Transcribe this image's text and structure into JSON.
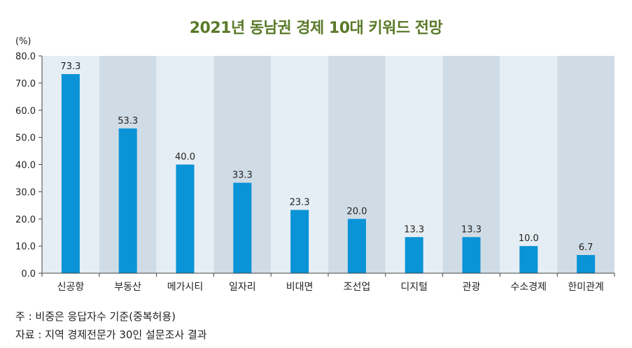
{
  "chart_data": {
    "type": "bar",
    "title": "2021년 동남권 경제 10대 키워드 전망",
    "unit": "(%)",
    "ylabel": "",
    "xlabel": "",
    "ylim": [
      0,
      80
    ],
    "yticks": [
      "0.0",
      "10.0",
      "20.0",
      "30.0",
      "40.0",
      "50.0",
      "60.0",
      "70.0",
      "80.0"
    ],
    "categories": [
      "신공항",
      "부동산",
      "메가시티",
      "일자리",
      "비대면",
      "조선업",
      "디지털",
      "관광",
      "수소경제",
      "한미관계"
    ],
    "values": [
      73.3,
      53.3,
      40.0,
      33.3,
      23.3,
      20.0,
      13.3,
      13.3,
      10.0,
      6.7
    ],
    "value_labels": [
      "73.3",
      "53.3",
      "40.0",
      "33.3",
      "23.3",
      "20.0",
      "13.3",
      "13.3",
      "10.0",
      "6.7"
    ],
    "grid": false,
    "colors": {
      "bar": "#0a93d6",
      "band_light": "#e5eef4",
      "band_dark": "#d0dce5",
      "title": "#5a7a2a"
    }
  },
  "notes": {
    "line1": "주 : 비중은 응답자수 기준(중복허용)",
    "line2": "자료 : 지역 경제전문가 30인 설문조사 결과"
  }
}
